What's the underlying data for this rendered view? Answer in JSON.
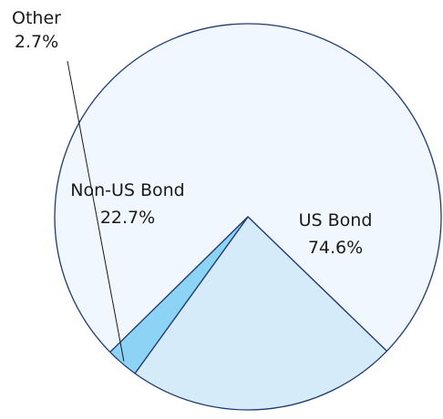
{
  "chart_data": {
    "type": "pie",
    "title": "",
    "slices": [
      {
        "label": "US Bond",
        "value_label": "74.6%",
        "value": 74.6,
        "color": "#f0f7fe"
      },
      {
        "label": "Non-US Bond",
        "value_label": "22.7%",
        "value": 22.7,
        "color": "#d6ebfa"
      },
      {
        "label": "Other",
        "value_label": "2.7%",
        "value": 2.7,
        "color": "#8dd3f5"
      }
    ],
    "stroke_color": "#1f3a6e",
    "leader_line_color": "#1a1a1a"
  }
}
